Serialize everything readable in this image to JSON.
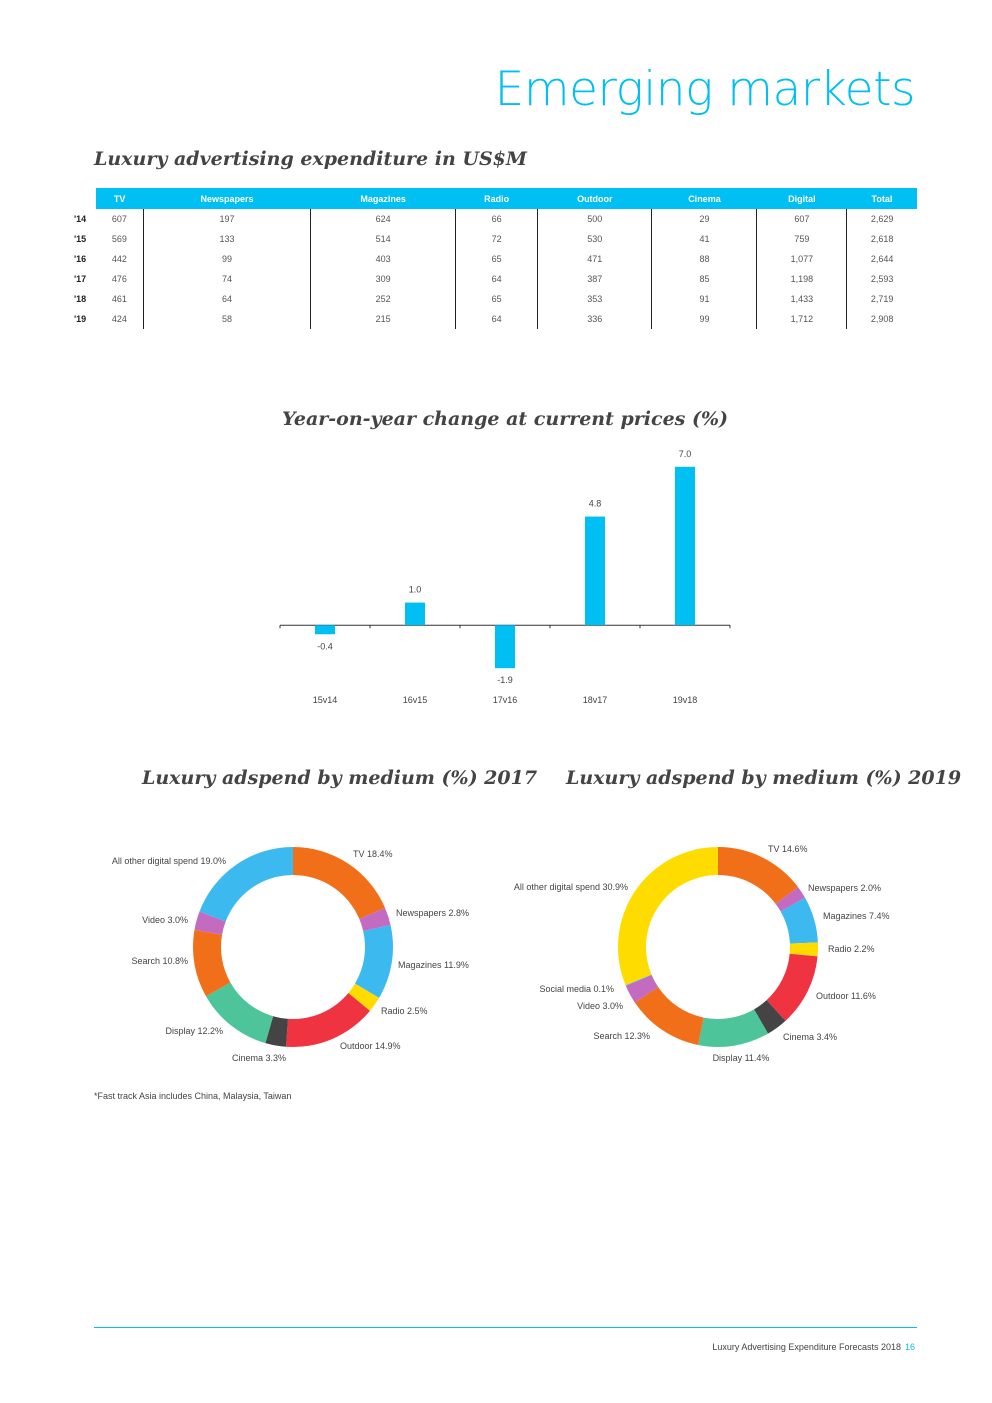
{
  "page_title": "Emerging markets",
  "table": {
    "title": "Luxury advertising expenditure in US$M",
    "columns": [
      "TV",
      "Newspapers",
      "Magazines",
      "Radio",
      "Outdoor",
      "Cinema",
      "Digital",
      "Total"
    ],
    "rows": [
      {
        "label": "'14",
        "values": [
          "607",
          "197",
          "624",
          "66",
          "500",
          "29",
          "607",
          "2,629"
        ]
      },
      {
        "label": "'15",
        "values": [
          "569",
          "133",
          "514",
          "72",
          "530",
          "41",
          "759",
          "2,618"
        ]
      },
      {
        "label": "'16",
        "values": [
          "442",
          "99",
          "403",
          "65",
          "471",
          "88",
          "1,077",
          "2,644"
        ]
      },
      {
        "label": "'17",
        "values": [
          "476",
          "74",
          "309",
          "64",
          "387",
          "85",
          "1,198",
          "2,593"
        ]
      },
      {
        "label": "'18",
        "values": [
          "461",
          "64",
          "252",
          "65",
          "353",
          "91",
          "1,433",
          "2,719"
        ]
      },
      {
        "label": "'19",
        "values": [
          "424",
          "58",
          "215",
          "64",
          "336",
          "99",
          "1,712",
          "2,908"
        ]
      }
    ]
  },
  "chart_data": [
    {
      "type": "bar",
      "title": "Year-on-year change at current prices (%)",
      "categories": [
        "15v14",
        "16v15",
        "17v16",
        "18v17",
        "19v18"
      ],
      "values": [
        -0.4,
        1.0,
        -1.9,
        4.8,
        7.0
      ],
      "labels": [
        "-0.4",
        "1.0",
        "-1.9",
        "4.8",
        "7.0"
      ],
      "ylim": [
        -2.2,
        7.3
      ],
      "color": "#00bff3"
    },
    {
      "type": "pie",
      "title": "Luxury adspend by medium (%) 2017",
      "slices": [
        {
          "label": "TV 18.4%",
          "value": 18.4,
          "color": "#f26f1a"
        },
        {
          "label": "Newspapers 2.8%",
          "value": 2.8,
          "color": "#c36bc1"
        },
        {
          "label": "Magazines 11.9%",
          "value": 11.9,
          "color": "#3cbaf0"
        },
        {
          "label": "Radio 2.5%",
          "value": 2.5,
          "color": "#ffdc00"
        },
        {
          "label": "Outdoor 14.9%",
          "value": 14.9,
          "color": "#ef3340"
        },
        {
          "label": "Cinema 3.3%",
          "value": 3.3,
          "color": "#444444"
        },
        {
          "label": "Display 12.2%",
          "value": 12.2,
          "color": "#4ec49a"
        },
        {
          "label": "Search 10.8%",
          "value": 10.8,
          "color": "#f26f1a"
        },
        {
          "label": "Video 3.0%",
          "value": 3.0,
          "color": "#c36bc1"
        },
        {
          "label": "All other digital spend 19.0%",
          "value": 19.0,
          "color": "#3cbaf0"
        }
      ]
    },
    {
      "type": "pie",
      "title": "Luxury adspend by medium (%) 2019",
      "slices": [
        {
          "label": "TV 14.6%",
          "value": 14.6,
          "color": "#f26f1a"
        },
        {
          "label": "Newspapers 2.0%",
          "value": 2.0,
          "color": "#c36bc1"
        },
        {
          "label": "Magazines 7.4%",
          "value": 7.4,
          "color": "#3cbaf0"
        },
        {
          "label": "Radio 2.2%",
          "value": 2.2,
          "color": "#ffdc00"
        },
        {
          "label": "Outdoor 11.6%",
          "value": 11.6,
          "color": "#ef3340"
        },
        {
          "label": "Cinema 3.4%",
          "value": 3.4,
          "color": "#444444"
        },
        {
          "label": "Display 11.4%",
          "value": 11.4,
          "color": "#4ec49a"
        },
        {
          "label": "Search 12.3%",
          "value": 12.3,
          "color": "#f26f1a"
        },
        {
          "label": "Video 3.0%",
          "value": 3.0,
          "color": "#c36bc1"
        },
        {
          "label": "Social media 0.1%",
          "value": 0.1,
          "color": "#3cbaf0"
        },
        {
          "label": "All other digital spend 30.9%",
          "value": 30.9,
          "color": "#ffdc00"
        }
      ]
    }
  ],
  "footnote": "*Fast track Asia includes China, Malaysia, Taiwan",
  "footer": {
    "text": "Luxury Advertising Expenditure Forecasts 2018",
    "page_number": "16"
  }
}
